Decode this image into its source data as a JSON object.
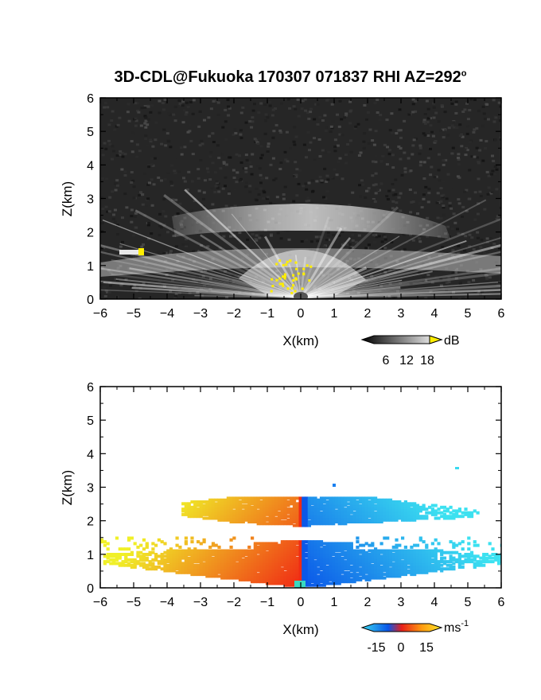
{
  "title_text": "3D-CDL@Fukuoka 170307 071837 RHI AZ=292",
  "title_degree": "o",
  "chart_data": [
    {
      "type": "heatmap",
      "title": "3D-CDL@Fukuoka 170307 071837 RHI AZ=292°",
      "variable": "backscatter intensity",
      "xlabel": "X(km)",
      "ylabel": "Z(km)",
      "xlim": [
        -6,
        6
      ],
      "ylim": [
        0,
        6
      ],
      "xticks": [
        "-6",
        "-5",
        "-4",
        "-3",
        "-2",
        "-1",
        "0",
        "1",
        "2",
        "3",
        "4",
        "5",
        "6"
      ],
      "yticks": [
        "0",
        "1",
        "2",
        "3",
        "4",
        "5",
        "6"
      ],
      "colorbar": {
        "unit": "dB",
        "ticks": [
          "6",
          "12",
          "18"
        ],
        "range": [
          0,
          20
        ],
        "colormap": "grayscale-to-yellow"
      },
      "features": [
        {
          "name": "upper layer",
          "x_range": [
            -3.8,
            4.8
          ],
          "z_range": [
            1.7,
            2.6
          ]
        },
        {
          "name": "lower layer",
          "x_range": [
            -6,
            6
          ],
          "z_range": [
            0.6,
            1.3
          ]
        },
        {
          "name": "yellow patch",
          "x": -4.7,
          "z": 1.4
        }
      ]
    },
    {
      "type": "heatmap",
      "variable": "radial velocity",
      "xlabel": "X(km)",
      "ylabel": "Z(km)",
      "xlim": [
        -6,
        6
      ],
      "ylim": [
        0,
        6
      ],
      "xticks": [
        "-6",
        "-5",
        "-4",
        "-3",
        "-2",
        "-1",
        "0",
        "1",
        "2",
        "3",
        "4",
        "5",
        "6"
      ],
      "yticks": [
        "0",
        "1",
        "2",
        "3",
        "4",
        "5",
        "6"
      ],
      "colorbar": {
        "unit": "ms",
        "unit_exponent": "-1",
        "ticks": [
          "-15",
          "0",
          "15"
        ],
        "range": [
          -20,
          20
        ],
        "colormap": "cyan-blue-red-yellow"
      },
      "features": [
        {
          "name": "upper layer",
          "x_range": [
            -3.6,
            5.3
          ],
          "z_range": [
            1.9,
            2.7
          ]
        },
        {
          "name": "lower layer",
          "x_range": [
            -6,
            6
          ],
          "z_range": [
            0.05,
            1.4
          ]
        },
        {
          "name": "isolated echo",
          "x": 4.7,
          "z": 3.55
        },
        {
          "name": "isolated echo",
          "x": 1.0,
          "z": 3.0
        }
      ]
    }
  ],
  "colors": {
    "negative_far": "#39d9f0",
    "negative_near": "#0a55e8",
    "zero": "#e8201a",
    "positive_far": "#ffe82a",
    "echo_highlight": "#ffee00"
  }
}
